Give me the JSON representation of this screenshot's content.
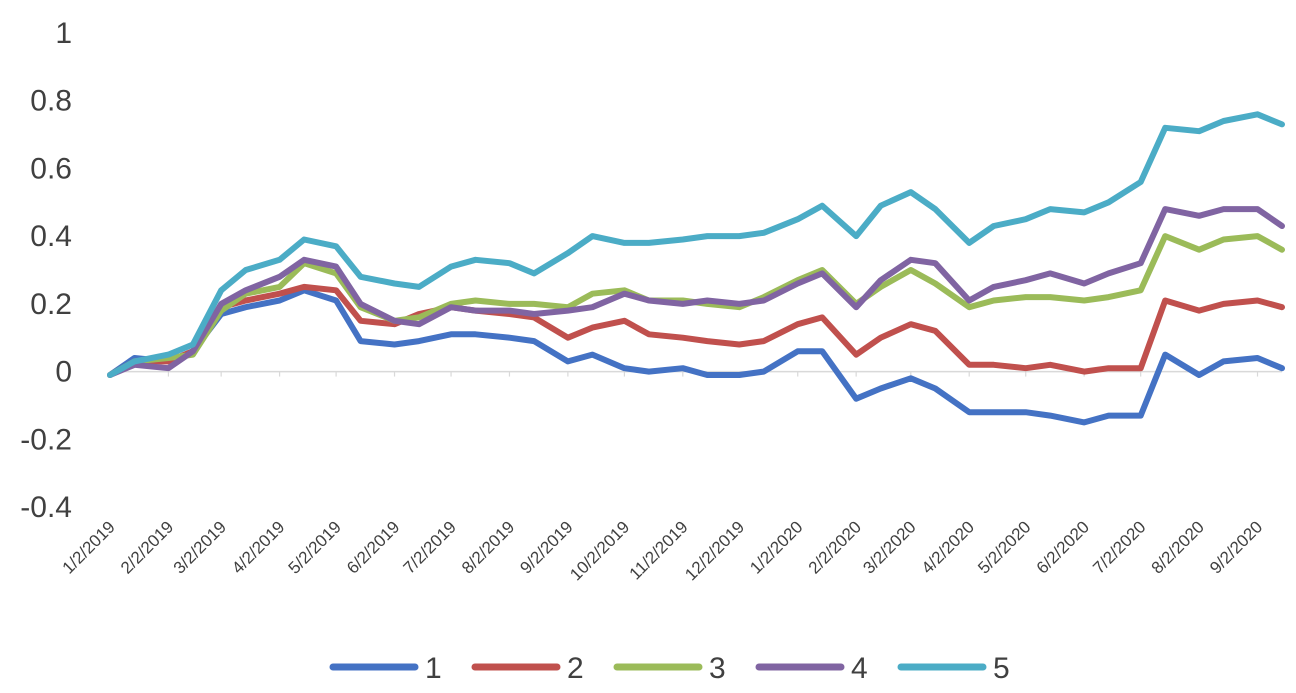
{
  "chart_data": {
    "type": "line",
    "title": "",
    "xlabel": "",
    "ylabel": "",
    "ylim": [
      -0.4,
      1
    ],
    "y_ticks": [
      "-0.4",
      "-0.2",
      "0",
      "0.2",
      "0.4",
      "0.6",
      "0.8",
      "1"
    ],
    "x_tick_labels": [
      "1/2/2019",
      "2/2/2019",
      "3/2/2019",
      "4/2/2019",
      "5/2/2019",
      "6/2/2019",
      "7/2/2019",
      "8/2/2019",
      "9/2/2019",
      "10/2/2019",
      "11/2/2019",
      "12/2/2019",
      "1/2/2020",
      "2/2/2020",
      "3/2/2020",
      "4/2/2020",
      "5/2/2020",
      "6/2/2020",
      "7/2/2020",
      "8/2/2020",
      "9/2/2020"
    ],
    "x": [
      "2019-01-02",
      "2019-01-15",
      "2019-02-02",
      "2019-02-15",
      "2019-03-02",
      "2019-03-15",
      "2019-04-02",
      "2019-04-15",
      "2019-05-02",
      "2019-05-15",
      "2019-06-02",
      "2019-06-15",
      "2019-07-02",
      "2019-07-15",
      "2019-08-02",
      "2019-08-15",
      "2019-09-02",
      "2019-09-15",
      "2019-10-02",
      "2019-10-15",
      "2019-11-02",
      "2019-11-15",
      "2019-12-02",
      "2019-12-15",
      "2020-01-02",
      "2020-01-15",
      "2020-02-02",
      "2020-02-15",
      "2020-03-02",
      "2020-03-15",
      "2020-04-02",
      "2020-04-15",
      "2020-05-02",
      "2020-05-15",
      "2020-06-02",
      "2020-06-15",
      "2020-07-02",
      "2020-07-15",
      "2020-08-02",
      "2020-08-15",
      "2020-09-02",
      "2020-09-15"
    ],
    "series": [
      {
        "name": "1",
        "color": "#4472C4",
        "values": [
          -0.01,
          0.04,
          0.03,
          0.06,
          0.17,
          0.19,
          0.21,
          0.24,
          0.21,
          0.09,
          0.08,
          0.09,
          0.11,
          0.11,
          0.1,
          0.09,
          0.03,
          0.05,
          0.01,
          0.0,
          0.01,
          -0.01,
          -0.01,
          0.0,
          0.06,
          0.06,
          -0.08,
          -0.05,
          -0.02,
          -0.05,
          -0.12,
          -0.12,
          -0.12,
          -0.13,
          -0.15,
          -0.13,
          -0.13,
          0.05,
          -0.01,
          0.03,
          0.04,
          0.01
        ]
      },
      {
        "name": "2",
        "color": "#C0504D",
        "values": [
          -0.01,
          0.03,
          0.03,
          0.06,
          0.19,
          0.21,
          0.23,
          0.25,
          0.24,
          0.15,
          0.14,
          0.17,
          0.19,
          0.18,
          0.17,
          0.16,
          0.1,
          0.13,
          0.15,
          0.11,
          0.1,
          0.09,
          0.08,
          0.09,
          0.14,
          0.16,
          0.05,
          0.1,
          0.14,
          0.12,
          0.02,
          0.02,
          0.01,
          0.02,
          0.0,
          0.01,
          0.01,
          0.21,
          0.18,
          0.2,
          0.21,
          0.19
        ]
      },
      {
        "name": "3",
        "color": "#9BBB59",
        "values": [
          -0.01,
          0.03,
          0.04,
          0.05,
          0.18,
          0.23,
          0.25,
          0.32,
          0.29,
          0.19,
          0.15,
          0.16,
          0.2,
          0.21,
          0.2,
          0.2,
          0.19,
          0.23,
          0.24,
          0.21,
          0.21,
          0.2,
          0.19,
          0.22,
          0.27,
          0.3,
          0.2,
          0.25,
          0.3,
          0.26,
          0.19,
          0.21,
          0.22,
          0.22,
          0.21,
          0.22,
          0.24,
          0.4,
          0.36,
          0.39,
          0.4,
          0.36
        ]
      },
      {
        "name": "4",
        "color": "#8064A2",
        "values": [
          -0.01,
          0.02,
          0.01,
          0.06,
          0.2,
          0.24,
          0.28,
          0.33,
          0.31,
          0.2,
          0.15,
          0.14,
          0.19,
          0.18,
          0.18,
          0.17,
          0.18,
          0.19,
          0.23,
          0.21,
          0.2,
          0.21,
          0.2,
          0.21,
          0.26,
          0.29,
          0.19,
          0.27,
          0.33,
          0.32,
          0.21,
          0.25,
          0.27,
          0.29,
          0.26,
          0.29,
          0.32,
          0.48,
          0.46,
          0.48,
          0.48,
          0.43
        ]
      },
      {
        "name": "5",
        "color": "#4BACC6",
        "values": [
          -0.01,
          0.03,
          0.05,
          0.08,
          0.24,
          0.3,
          0.33,
          0.39,
          0.37,
          0.28,
          0.26,
          0.25,
          0.31,
          0.33,
          0.32,
          0.29,
          0.35,
          0.4,
          0.38,
          0.38,
          0.39,
          0.4,
          0.4,
          0.41,
          0.45,
          0.49,
          0.4,
          0.49,
          0.53,
          0.48,
          0.38,
          0.43,
          0.45,
          0.48,
          0.47,
          0.5,
          0.56,
          0.72,
          0.71,
          0.74,
          0.76,
          0.73
        ]
      }
    ],
    "grid": false,
    "legend_position": "bottom"
  }
}
